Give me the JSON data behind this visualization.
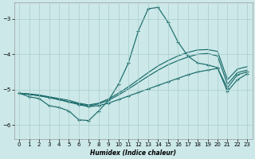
{
  "xlabel": "Humidex (Indice chaleur)",
  "bg_color": "#cce8e8",
  "grid_color": "#aacccc",
  "line_color": "#1a6b6b",
  "xlim": [
    -0.5,
    23.5
  ],
  "ylim": [
    -6.4,
    -2.55
  ],
  "yticks": [
    -6,
    -5,
    -4,
    -3
  ],
  "xticks": [
    0,
    1,
    2,
    3,
    4,
    5,
    6,
    7,
    8,
    9,
    10,
    11,
    12,
    13,
    14,
    15,
    16,
    17,
    18,
    19,
    20,
    21,
    22,
    23
  ],
  "series_peak_x": [
    0,
    1,
    2,
    3,
    4,
    5,
    6,
    7,
    8,
    9,
    10,
    11,
    12,
    13,
    14,
    15,
    16,
    17,
    18,
    19,
    20,
    21,
    22,
    23
  ],
  "series_peak_y": [
    -5.1,
    -5.2,
    -5.25,
    -5.45,
    -5.5,
    -5.6,
    -5.85,
    -5.87,
    -5.6,
    -5.3,
    -4.85,
    -4.25,
    -3.35,
    -2.72,
    -2.68,
    -3.1,
    -3.65,
    -4.05,
    -4.25,
    -4.3,
    -4.38,
    -5.05,
    -4.72,
    -4.55
  ],
  "series_flat_x": [
    0,
    1,
    2,
    3,
    4,
    5,
    6,
    7,
    8,
    9,
    10,
    11,
    12,
    13,
    14,
    15,
    16,
    17,
    18,
    19,
    20,
    21,
    22,
    23
  ],
  "series_flat_y": [
    -5.1,
    -5.13,
    -5.17,
    -5.22,
    -5.28,
    -5.35,
    -5.42,
    -5.48,
    -5.45,
    -5.38,
    -5.28,
    -5.18,
    -5.08,
    -4.98,
    -4.88,
    -4.78,
    -4.68,
    -4.58,
    -4.5,
    -4.45,
    -4.4,
    -4.95,
    -4.58,
    -4.5
  ],
  "series_mid1_x": [
    0,
    1,
    2,
    3,
    4,
    5,
    6,
    7,
    8,
    9,
    10,
    11,
    12,
    13,
    14,
    15,
    16,
    17,
    18,
    19,
    20,
    21,
    22,
    23
  ],
  "series_mid1_y": [
    -5.1,
    -5.13,
    -5.17,
    -5.22,
    -5.28,
    -5.34,
    -5.4,
    -5.46,
    -5.4,
    -5.3,
    -5.15,
    -4.98,
    -4.8,
    -4.62,
    -4.45,
    -4.3,
    -4.18,
    -4.08,
    -4.0,
    -3.98,
    -4.05,
    -4.85,
    -4.52,
    -4.45
  ],
  "series_mid2_x": [
    0,
    1,
    2,
    3,
    4,
    5,
    6,
    7,
    8,
    9,
    10,
    11,
    12,
    13,
    14,
    15,
    16,
    17,
    18,
    19,
    20,
    21,
    22,
    23
  ],
  "series_mid2_y": [
    -5.1,
    -5.12,
    -5.15,
    -5.2,
    -5.25,
    -5.3,
    -5.38,
    -5.43,
    -5.38,
    -5.26,
    -5.1,
    -4.92,
    -4.72,
    -4.52,
    -4.33,
    -4.18,
    -4.05,
    -3.95,
    -3.88,
    -3.87,
    -3.92,
    -4.72,
    -4.42,
    -4.35
  ]
}
